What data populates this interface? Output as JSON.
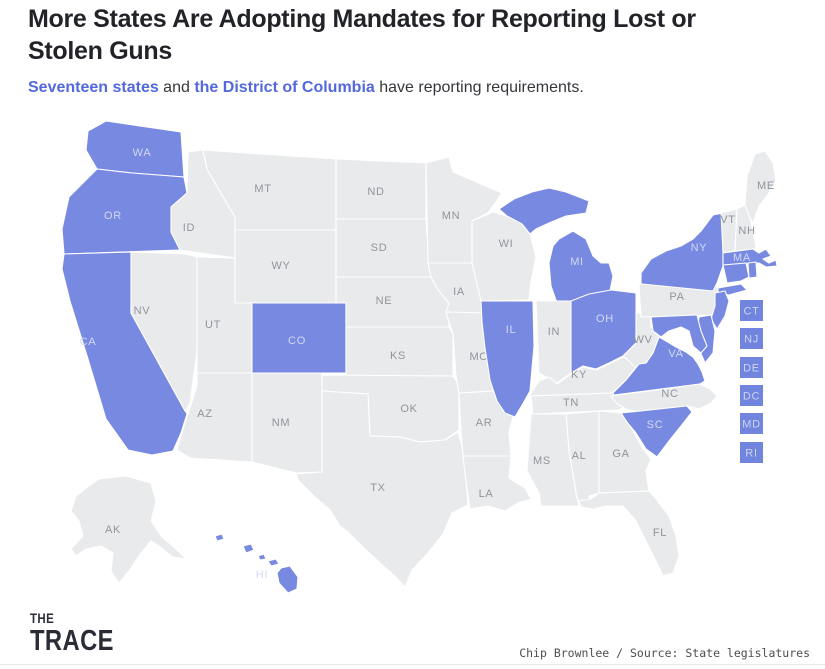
{
  "header": {
    "title": "More States Are Adopting Mandates for Reporting Lost or Stolen Guns",
    "subtitle": {
      "link1": "Seventeen states",
      "and": " and ",
      "link2": "the District of Columbia",
      "rest": " have reporting requirements."
    }
  },
  "map": {
    "states": [
      {
        "abbr": "WA",
        "highlighted": true
      },
      {
        "abbr": "OR",
        "highlighted": true
      },
      {
        "abbr": "CA",
        "highlighted": true
      },
      {
        "abbr": "NV",
        "highlighted": false
      },
      {
        "abbr": "ID",
        "highlighted": false
      },
      {
        "abbr": "MT",
        "highlighted": false
      },
      {
        "abbr": "WY",
        "highlighted": false
      },
      {
        "abbr": "UT",
        "highlighted": false
      },
      {
        "abbr": "CO",
        "highlighted": true
      },
      {
        "abbr": "AZ",
        "highlighted": false
      },
      {
        "abbr": "NM",
        "highlighted": false
      },
      {
        "abbr": "ND",
        "highlighted": false
      },
      {
        "abbr": "SD",
        "highlighted": false
      },
      {
        "abbr": "NE",
        "highlighted": false
      },
      {
        "abbr": "KS",
        "highlighted": false
      },
      {
        "abbr": "OK",
        "highlighted": false
      },
      {
        "abbr": "TX",
        "highlighted": false
      },
      {
        "abbr": "MN",
        "highlighted": false
      },
      {
        "abbr": "IA",
        "highlighted": false
      },
      {
        "abbr": "MO",
        "highlighted": false
      },
      {
        "abbr": "AR",
        "highlighted": false
      },
      {
        "abbr": "LA",
        "highlighted": false
      },
      {
        "abbr": "WI",
        "highlighted": false
      },
      {
        "abbr": "IL",
        "highlighted": true
      },
      {
        "abbr": "MI",
        "highlighted": true
      },
      {
        "abbr": "IN",
        "highlighted": false
      },
      {
        "abbr": "OH",
        "highlighted": true
      },
      {
        "abbr": "KY",
        "highlighted": false
      },
      {
        "abbr": "TN",
        "highlighted": false
      },
      {
        "abbr": "WV",
        "highlighted": false
      },
      {
        "abbr": "PA",
        "highlighted": false
      },
      {
        "abbr": "NY",
        "highlighted": true
      },
      {
        "abbr": "VT",
        "highlighted": false
      },
      {
        "abbr": "NH",
        "highlighted": false
      },
      {
        "abbr": "ME",
        "highlighted": false
      },
      {
        "abbr": "MA",
        "highlighted": true
      },
      {
        "abbr": "CT",
        "highlighted": true,
        "show_label": false
      },
      {
        "abbr": "RI",
        "highlighted": true,
        "show_label": false
      },
      {
        "abbr": "NJ",
        "highlighted": true,
        "show_label": false
      },
      {
        "abbr": "DE",
        "highlighted": true,
        "show_label": false
      },
      {
        "abbr": "MD",
        "highlighted": true,
        "show_label": false
      },
      {
        "abbr": "VA",
        "highlighted": true
      },
      {
        "abbr": "NC",
        "highlighted": false
      },
      {
        "abbr": "SC",
        "highlighted": true
      },
      {
        "abbr": "GA",
        "highlighted": false
      },
      {
        "abbr": "AL",
        "highlighted": false
      },
      {
        "abbr": "MS",
        "highlighted": false
      },
      {
        "abbr": "FL",
        "highlighted": false
      },
      {
        "abbr": "AK",
        "highlighted": false
      },
      {
        "abbr": "HI",
        "highlighted": true
      }
    ],
    "side_boxes": [
      "CT",
      "NJ",
      "DE",
      "DC",
      "MD",
      "RI"
    ]
  },
  "footer": {
    "logo_line1": "THE",
    "logo_line2": "TRACE",
    "credit": "Chip Brownlee / Source: State legislatures"
  },
  "colors": {
    "highlight": "#7889e2",
    "state_fill": "#e9eaec",
    "box_fill": "#7185de",
    "label_on_gray": "#8f959c",
    "label_on_highlight": "#d3d9f3",
    "link_blue": "#5468de"
  }
}
